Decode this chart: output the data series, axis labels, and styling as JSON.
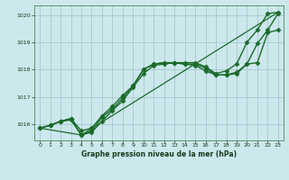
{
  "title": "Graphe pression niveau de la mer (hPa)",
  "background_color": "#cce8ec",
  "grid_color": "#aaccd4",
  "line_color": "#1a6b2a",
  "xlim": [
    -0.5,
    23.5
  ],
  "ylim": [
    1015.4,
    1020.35
  ],
  "xticks": [
    0,
    1,
    2,
    3,
    4,
    5,
    6,
    7,
    8,
    9,
    10,
    11,
    12,
    13,
    14,
    15,
    16,
    17,
    18,
    19,
    20,
    21,
    22,
    23
  ],
  "yticks": [
    1016,
    1017,
    1018,
    1019,
    1020
  ],
  "series": [
    {
      "x": [
        0,
        1,
        2,
        3,
        4,
        5,
        6,
        7,
        8,
        9,
        10,
        11,
        12,
        13,
        14,
        15,
        16,
        17,
        18,
        19,
        20,
        21,
        22,
        23
      ],
      "y": [
        1015.85,
        1015.95,
        1016.1,
        1016.2,
        1015.75,
        1015.85,
        1016.3,
        1016.65,
        1017.05,
        1017.4,
        1018.0,
        1018.2,
        1018.25,
        1018.25,
        1018.25,
        1018.25,
        1018.1,
        1017.85,
        1017.95,
        1018.2,
        1019.0,
        1019.45,
        1020.05,
        1020.1
      ],
      "marker": "D",
      "markersize": 2.5,
      "linewidth": 1.0
    },
    {
      "x": [
        0,
        1,
        2,
        3,
        4,
        5,
        6,
        7,
        8,
        9,
        10,
        11,
        12,
        13,
        14,
        15,
        16,
        17,
        18,
        19,
        20,
        21,
        22,
        23
      ],
      "y": [
        1015.85,
        1015.95,
        1016.1,
        1016.2,
        1015.6,
        1015.7,
        1016.1,
        1016.5,
        1016.85,
        1017.35,
        1017.85,
        1018.15,
        1018.2,
        1018.25,
        1018.2,
        1018.2,
        1018.05,
        1017.8,
        1017.8,
        1017.85,
        1018.2,
        1018.25,
        1019.35,
        1019.45
      ],
      "marker": "D",
      "markersize": 2.5,
      "linewidth": 1.0
    },
    {
      "x": [
        0,
        1,
        2,
        3,
        4,
        5,
        6,
        7,
        8,
        9,
        10,
        11,
        12,
        13,
        14,
        15,
        16,
        17,
        18,
        19,
        20,
        21,
        22,
        23
      ],
      "y": [
        1015.85,
        1015.95,
        1016.1,
        1016.15,
        1015.6,
        1015.75,
        1016.25,
        1016.55,
        1016.95,
        1017.4,
        1018.0,
        1018.2,
        1018.25,
        1018.25,
        1018.2,
        1018.15,
        1017.95,
        1017.8,
        1017.8,
        1017.9,
        1018.2,
        1018.95,
        1019.45,
        1020.05
      ],
      "marker": "D",
      "markersize": 2.5,
      "linewidth": 1.0
    },
    {
      "x": [
        0,
        4,
        23
      ],
      "y": [
        1015.85,
        1015.6,
        1020.1
      ],
      "marker": null,
      "markersize": 0,
      "linewidth": 0.9,
      "linestyle": "-"
    }
  ]
}
